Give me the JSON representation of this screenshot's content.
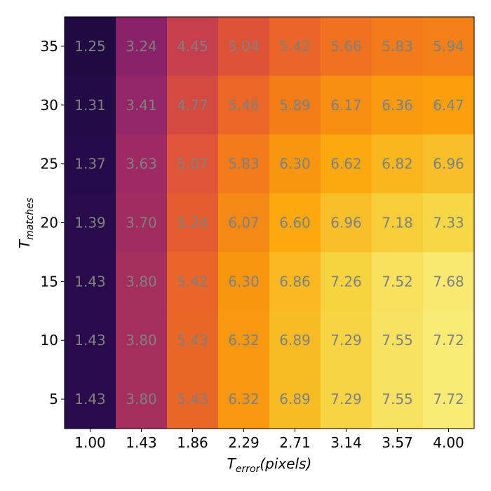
{
  "chart_data": {
    "type": "heatmap",
    "x_ticks": [
      "1.00",
      "1.43",
      "1.86",
      "2.29",
      "2.71",
      "3.14",
      "3.57",
      "4.00"
    ],
    "y_ticks": [
      "35",
      "30",
      "25",
      "20",
      "15",
      "10",
      "5"
    ],
    "xlabel": {
      "main": "T",
      "sub": "error",
      "rest": "(pixels)"
    },
    "ylabel": {
      "main": "T",
      "sub": "matches"
    },
    "values": [
      [
        1.25,
        3.24,
        4.45,
        5.04,
        5.42,
        5.66,
        5.83,
        5.94
      ],
      [
        1.31,
        3.41,
        4.77,
        5.46,
        5.89,
        6.17,
        6.36,
        6.47
      ],
      [
        1.37,
        3.63,
        5.07,
        5.83,
        6.3,
        6.62,
        6.82,
        6.96
      ],
      [
        1.39,
        3.7,
        5.24,
        6.07,
        6.6,
        6.96,
        7.18,
        7.33
      ],
      [
        1.43,
        3.8,
        5.42,
        6.3,
        6.86,
        7.26,
        7.52,
        7.68
      ],
      [
        1.43,
        3.8,
        5.43,
        6.32,
        6.89,
        7.29,
        7.55,
        7.72
      ],
      [
        1.43,
        3.8,
        5.43,
        6.32,
        6.89,
        7.29,
        7.55,
        7.72
      ]
    ],
    "colormap": "inferno",
    "color_range": [
      1.25,
      7.72
    ]
  }
}
